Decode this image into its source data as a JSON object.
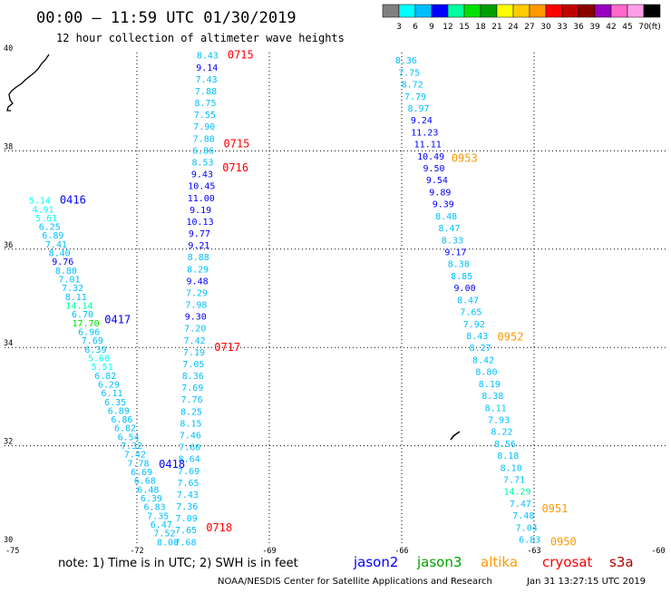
{
  "header": {
    "title": "00:00 – 11:59 UTC 01/30/2019",
    "subtitle": "12 hour collection of altimeter wave heights"
  },
  "footer": {
    "note": "note:  1) Time is in UTC; 2) SWH is in feet",
    "credit": "NOAA/NESDIS Center for Satellite Applications and Research",
    "timestamp": "Jan 31 13:27:15 UTC 2019"
  },
  "satellites": [
    {
      "name": "jason2",
      "color": "#0000ff"
    },
    {
      "name": "jason3",
      "color": "#00a000"
    },
    {
      "name": "altika",
      "color": "#ff9900"
    },
    {
      "name": "cryosat",
      "color": "#ff0000"
    },
    {
      "name": "s3a",
      "color": "#b00000"
    }
  ],
  "color_scale": {
    "unit": "(ft)",
    "labels": [
      "3",
      "6",
      "9",
      "12",
      "15",
      "18",
      "21",
      "24",
      "27",
      "30",
      "33",
      "36",
      "39",
      "42",
      "45",
      "70"
    ],
    "colors": [
      "#808080",
      "#00ffff",
      "#00bfff",
      "#0000ff",
      "#00ffa0",
      "#00e000",
      "#00a000",
      "#ffff00",
      "#ffcc00",
      "#ff9900",
      "#ff0000",
      "#c00000",
      "#8b0000",
      "#9a00c0",
      "#ff69c8",
      "#ff9ee8",
      "#000000"
    ]
  },
  "chart_data": {
    "type": "scatter",
    "title": "00:00 – 11:59 UTC 01/30/2019",
    "xlabel": "",
    "ylabel": "",
    "xlim": [
      -75,
      -60
    ],
    "ylim": [
      30,
      40
    ],
    "x_ticks": [
      "-75",
      "-72",
      "-69",
      "-66",
      "-63",
      "-60"
    ],
    "y_ticks": [
      "30",
      "32",
      "34",
      "36",
      "38",
      "40"
    ],
    "grid": true,
    "tracks": [
      {
        "name": "track-1",
        "times": [
          {
            "label": "0715",
            "sat": "cryosat",
            "lat": 39.95
          },
          {
            "label": "0715",
            "sat": "cryosat",
            "lat": 38.15
          },
          {
            "label": "0716",
            "sat": "cryosat",
            "lat": 37.66
          },
          {
            "label": "0717",
            "sat": "cryosat",
            "lat": 34.0
          },
          {
            "label": "0718",
            "sat": "cryosat",
            "lat": 30.33
          }
        ],
        "start": [
          -70.4,
          39.95
        ],
        "end": [
          -70.9,
          30.05
        ],
        "values": [
          "8.43",
          "9.14",
          "7.43",
          "7.88",
          "8.75",
          "7.55",
          "7.90",
          "7.88",
          "6.86",
          "8.53",
          "9.43",
          "10.45",
          "11.00",
          "9.19",
          "10.13",
          "9.77",
          "9.21",
          "8.88",
          "8.29",
          "9.48",
          "7.29",
          "7.98",
          "9.30",
          "7.20",
          "7.42",
          "7.19",
          "7.05",
          "8.36",
          "7.69",
          "7.76",
          "8.25",
          "8.15",
          "7.46",
          "7.60",
          "8.64",
          "7.69",
          "7.65",
          "7.43",
          "7.36",
          "7.09",
          "7.65",
          "7.68"
        ]
      },
      {
        "name": "track-2",
        "times": [
          {
            "label": "0416",
            "sat": "jason2",
            "lat": 37.0
          },
          {
            "label": "0417",
            "sat": "jason2",
            "lat": 34.57
          },
          {
            "label": "0418",
            "sat": "jason2",
            "lat": 31.62
          }
        ],
        "start": [
          -74.2,
          37.0
        ],
        "end": [
          -71.3,
          30.05
        ],
        "values": [
          "5.14",
          "4.91",
          "5.61",
          "6.25",
          "6.89",
          "7.41",
          "8.40",
          "9.76",
          "8.80",
          "7.01",
          "7.32",
          "8.11",
          "14.14",
          "6.70",
          "17.70",
          "6.96",
          "7.69",
          "6.39",
          "5.68",
          "5.51",
          "6.82",
          "6.29",
          "6.11",
          "6.35",
          "6.89",
          "6.86",
          "6.82",
          "6.54",
          "7.32",
          "7.42",
          "7.78",
          "6.69",
          "6.68",
          "6.48",
          "6.39",
          "6.83",
          "7.35",
          "6.47",
          "7.52",
          "8.08"
        ]
      },
      {
        "name": "track-3",
        "times": [
          {
            "label": "0953",
            "sat": "altika",
            "lat": 37.85
          },
          {
            "label": "0952",
            "sat": "altika",
            "lat": 34.22
          },
          {
            "label": "0951",
            "sat": "altika",
            "lat": 30.72
          },
          {
            "label": "0950",
            "sat": "altika",
            "lat": 30.05
          }
        ],
        "start": [
          -65.9,
          39.85
        ],
        "end": [
          -63.1,
          30.1
        ],
        "values": [
          "8.36",
          "7.75",
          "8.72",
          "7.79",
          "8.97",
          "9.24",
          "11.23",
          "11.11",
          "10.49",
          "9.50",
          "9.54",
          "9.89",
          "9.39",
          "8.48",
          "8.47",
          "8.33",
          "9.17",
          "8.38",
          "8.85",
          "9.00",
          "8.47",
          "7.65",
          "7.92",
          "8.43",
          "8.27",
          "8.42",
          "8.80",
          "8.19",
          "8.38",
          "8.11",
          "7.93",
          "8.22",
          "8.56",
          "8.18",
          "8.10",
          "7.71",
          "14.29",
          "7.47",
          "7.48",
          "7.04",
          "6.83"
        ]
      }
    ]
  }
}
